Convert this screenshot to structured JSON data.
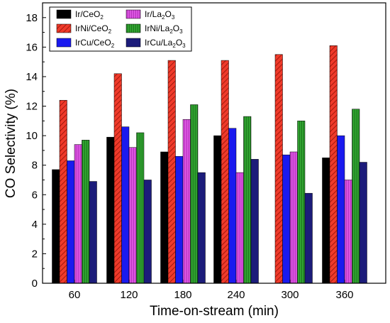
{
  "chart_data": {
    "type": "bar",
    "xlabel": "Time-on-stream (min)",
    "ylabel": "CO Selectivity (%)",
    "ylim": [
      0,
      19
    ],
    "yticks": [
      0,
      2,
      4,
      6,
      8,
      10,
      12,
      14,
      16,
      18
    ],
    "grid": false,
    "legend_position": "top-left",
    "categories": [
      "60",
      "120",
      "180",
      "240",
      "300",
      "360"
    ],
    "series": [
      {
        "name": "Ir/CeO2",
        "label_base": "Ir/CeO",
        "label_sub": "2",
        "color": "#000000",
        "pattern": "solid",
        "values": [
          7.7,
          9.9,
          8.9,
          10.0,
          0.0,
          8.5
        ]
      },
      {
        "name": "IrNi/CeO2",
        "label_base": "IrNi/CeO",
        "label_sub": "2",
        "color": "#e8221a",
        "pattern": "hatch",
        "values": [
          12.4,
          14.2,
          15.1,
          15.1,
          15.5,
          16.1
        ]
      },
      {
        "name": "IrCu/CeO2",
        "label_base": "IrCu/CeO",
        "label_sub": "2",
        "color": "#1a1aef",
        "pattern": "solid",
        "values": [
          8.3,
          10.6,
          8.6,
          10.5,
          8.7,
          10.0
        ]
      },
      {
        "name": "Ir/La2O3",
        "label_base": "Ir/La",
        "label_sub": "2",
        "label_mid": "O",
        "label_sub2": "3",
        "color": "#d24ad8",
        "pattern": "vstripe",
        "values": [
          9.4,
          9.2,
          11.1,
          7.5,
          8.9,
          7.0
        ]
      },
      {
        "name": "IrNi/La2O3",
        "label_base": "IrNi/La",
        "label_sub": "2",
        "label_mid": "O",
        "label_sub2": "3",
        "color": "#2a9a2a",
        "pattern": "vstripe",
        "values": [
          9.7,
          10.2,
          12.1,
          11.3,
          11.0,
          11.8
        ]
      },
      {
        "name": "IrCu/La2O3",
        "label_base": "IrCu/La",
        "label_sub": "2",
        "label_mid": "O",
        "label_sub2": "3",
        "color": "#1c1c7a",
        "pattern": "solid",
        "values": [
          6.9,
          7.0,
          7.5,
          8.4,
          6.1,
          8.2
        ]
      }
    ]
  }
}
